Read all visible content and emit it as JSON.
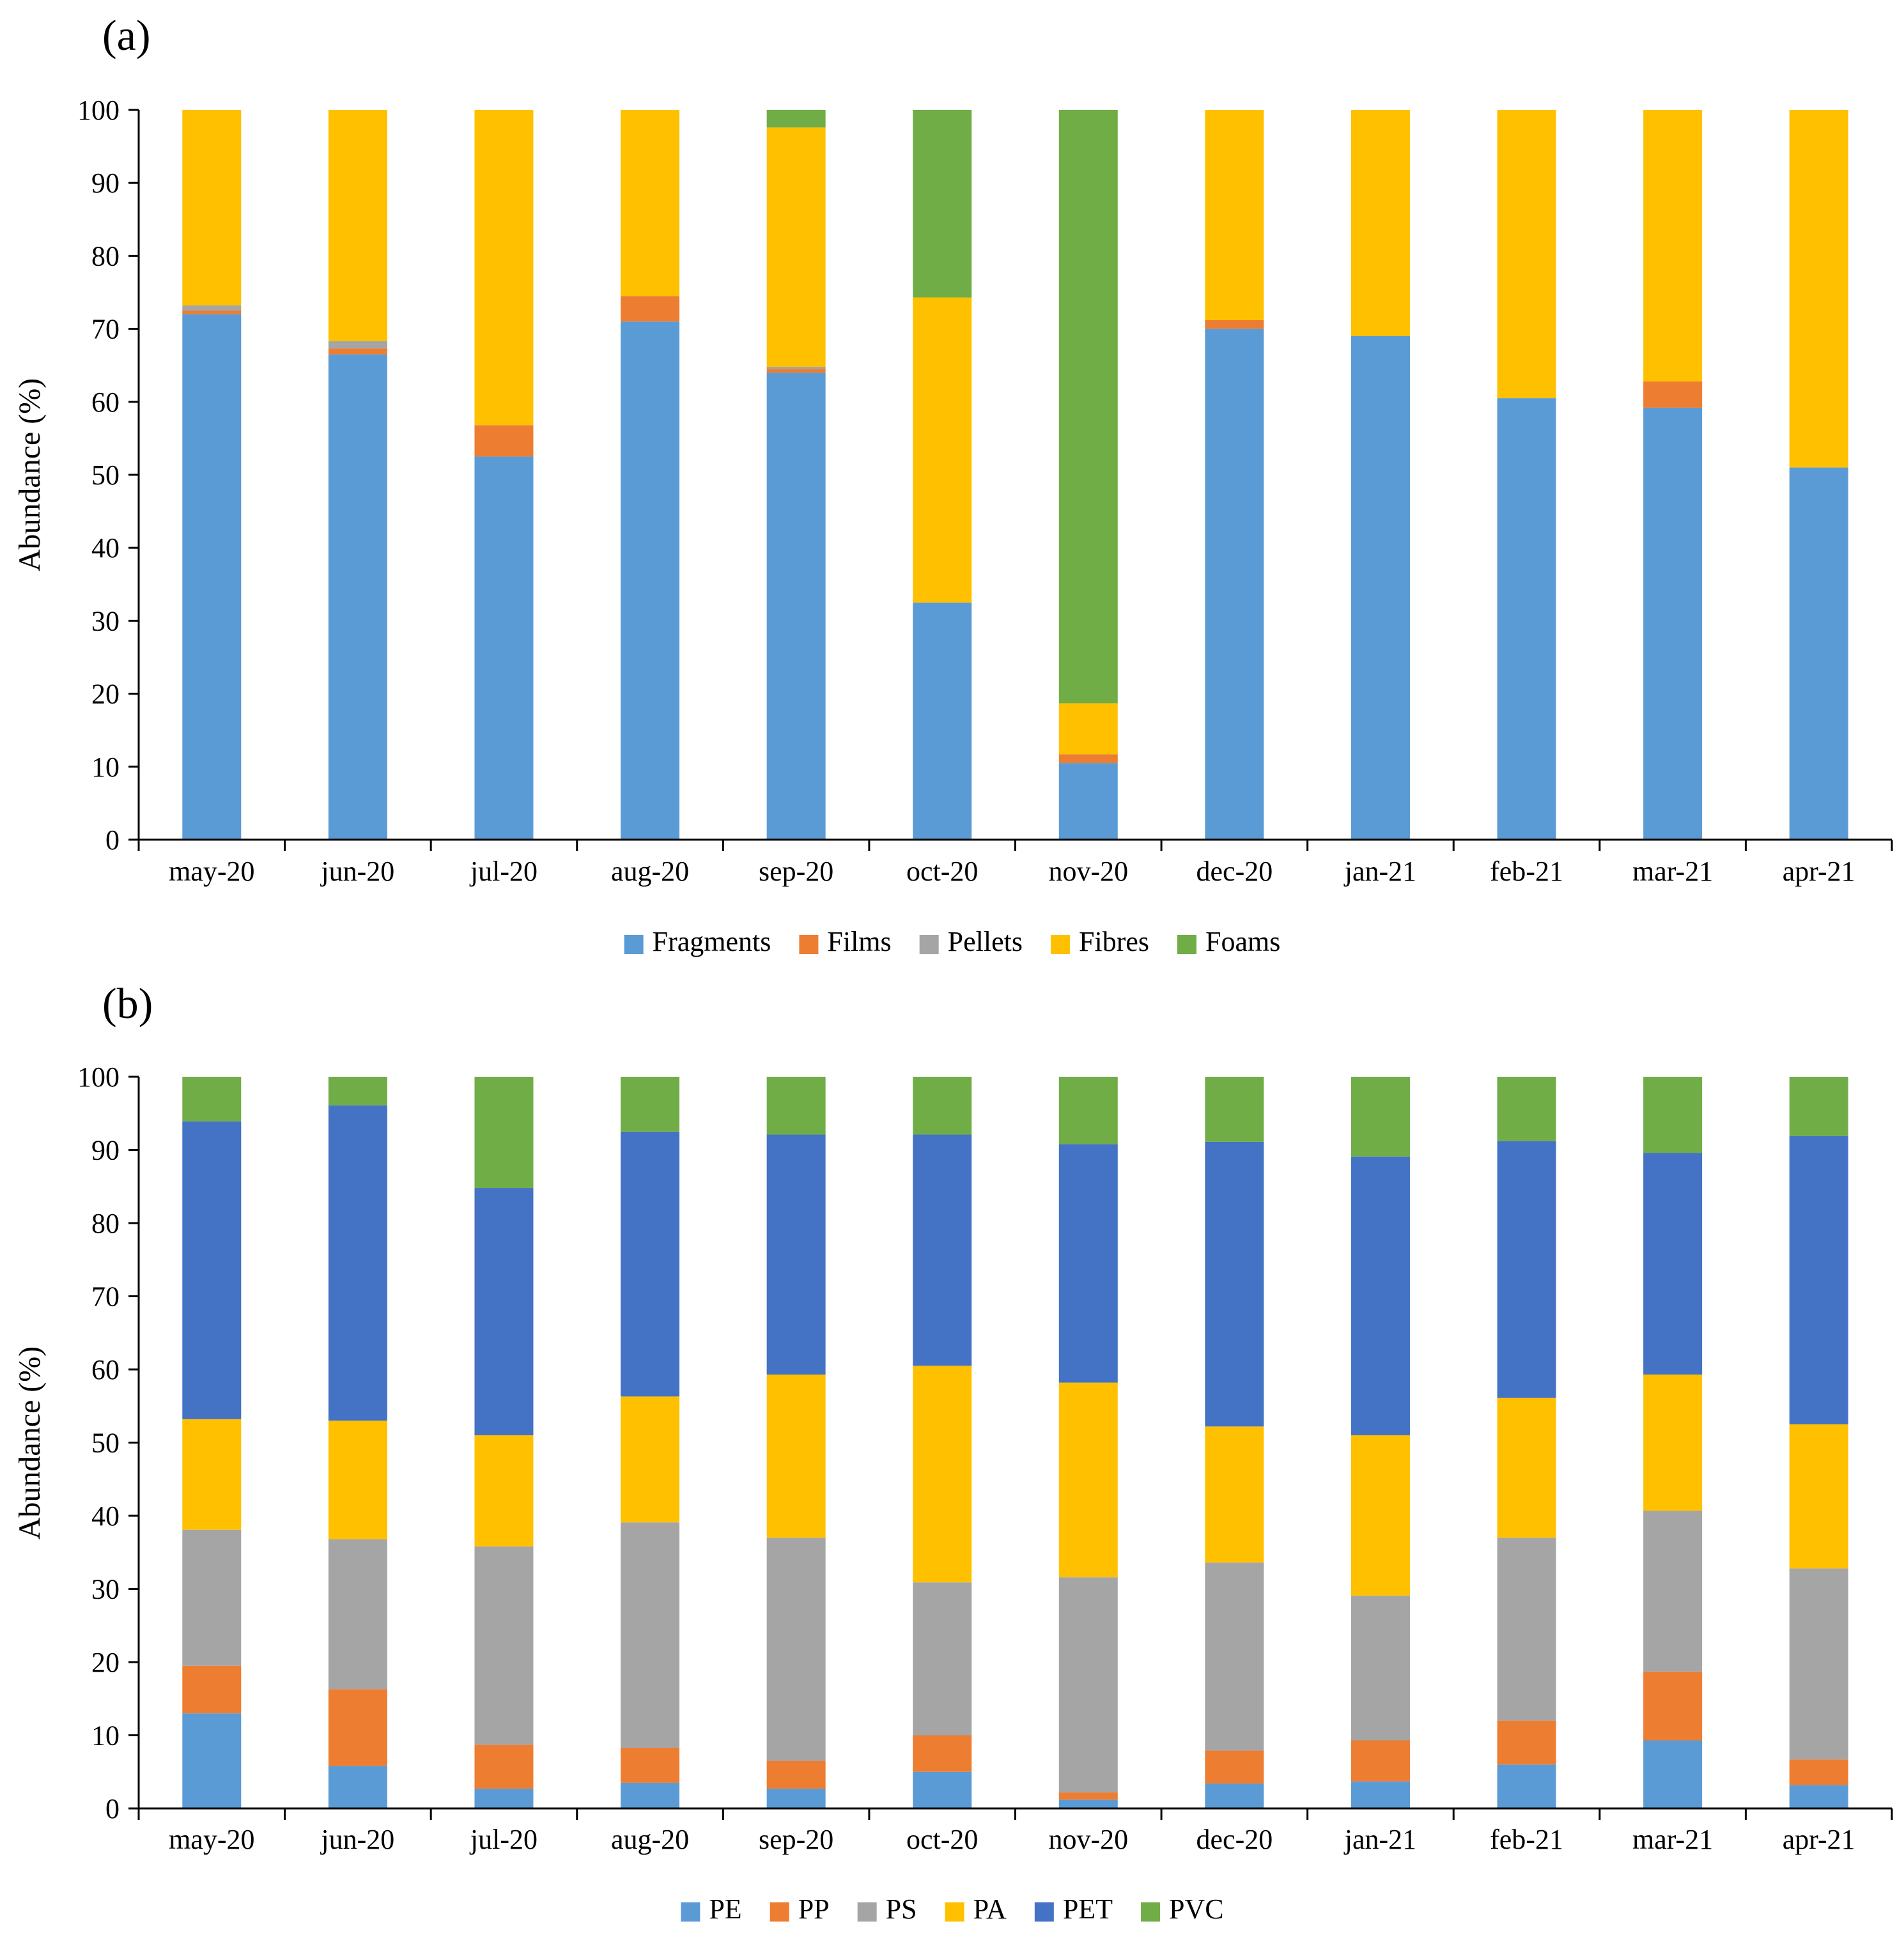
{
  "figure": {
    "colors": {
      "blue_light": "#5b9bd5",
      "orange": "#ed7d31",
      "gray": "#a5a5a5",
      "yellow": "#ffc000",
      "blue_dark": "#4472c4",
      "green": "#70ad47",
      "axis": "#000000"
    }
  },
  "chart_data": [
    {
      "panel_label": "(a)",
      "type": "bar",
      "stacked": true,
      "categories": [
        "may-20",
        "jun-20",
        "jul-20",
        "aug-20",
        "sep-20",
        "oct-20",
        "nov-20",
        "dec-20",
        "jan-21",
        "feb-21",
        "mar-21",
        "apr-21"
      ],
      "ylabel": "Abundance (%)",
      "xlabel": "",
      "ylim": [
        0,
        100
      ],
      "yticks": [
        0,
        10,
        20,
        30,
        40,
        50,
        60,
        70,
        80,
        90,
        100
      ],
      "grid": false,
      "legend_position": "bottom",
      "series": [
        {
          "name": "Fragments",
          "color": "#5b9bd5",
          "values": [
            72.0,
            66.5,
            52.5,
            71.0,
            64.0,
            32.5,
            10.5,
            70.0,
            69.0,
            60.5,
            59.2,
            51.0
          ]
        },
        {
          "name": "Films",
          "color": "#ed7d31",
          "values": [
            0.5,
            0.8,
            4.3,
            3.5,
            0.5,
            0,
            1.2,
            1.2,
            0,
            0,
            3.6,
            0
          ]
        },
        {
          "name": "Pellets",
          "color": "#a5a5a5",
          "values": [
            0.7,
            1.0,
            0,
            0,
            0.3,
            0,
            0,
            0,
            0,
            0,
            0,
            0
          ]
        },
        {
          "name": "Fibres",
          "color": "#ffc000",
          "values": [
            26.8,
            31.7,
            43.2,
            25.5,
            32.8,
            41.8,
            7.0,
            28.8,
            31.0,
            39.5,
            37.2,
            49.0
          ]
        },
        {
          "name": "Foams",
          "color": "#70ad47",
          "values": [
            0,
            0,
            0,
            0,
            2.4,
            25.7,
            81.3,
            0,
            0,
            0,
            0,
            0
          ]
        }
      ]
    },
    {
      "panel_label": "(b)",
      "type": "bar",
      "stacked": true,
      "categories": [
        "may-20",
        "jun-20",
        "jul-20",
        "aug-20",
        "sep-20",
        "oct-20",
        "nov-20",
        "dec-20",
        "jan-21",
        "feb-21",
        "mar-21",
        "apr-21"
      ],
      "ylabel": "Abundance (%)",
      "xlabel": "",
      "ylim": [
        0,
        100
      ],
      "yticks": [
        0,
        10,
        20,
        30,
        40,
        50,
        60,
        70,
        80,
        90,
        100
      ],
      "grid": false,
      "legend_position": "bottom",
      "series": [
        {
          "name": "PE",
          "color": "#5b9bd5",
          "values": [
            13.0,
            5.8,
            2.7,
            3.5,
            2.7,
            5.0,
            1.2,
            3.4,
            3.7,
            6.0,
            9.3,
            3.2
          ]
        },
        {
          "name": "PP",
          "color": "#ed7d31",
          "values": [
            6.5,
            10.5,
            6.0,
            4.8,
            3.8,
            5.0,
            1.0,
            4.5,
            5.6,
            6.0,
            9.4,
            3.5
          ]
        },
        {
          "name": "PS",
          "color": "#a5a5a5",
          "values": [
            18.6,
            20.5,
            27.1,
            30.8,
            30.5,
            20.9,
            29.4,
            25.7,
            19.8,
            25.0,
            22.0,
            26.1
          ]
        },
        {
          "name": "PA",
          "color": "#ffc000",
          "values": [
            15.1,
            16.2,
            15.2,
            17.2,
            22.3,
            29.6,
            26.6,
            18.6,
            21.9,
            19.1,
            18.6,
            19.7
          ]
        },
        {
          "name": "PET",
          "color": "#4472c4",
          "values": [
            40.7,
            43.1,
            33.8,
            36.2,
            32.8,
            31.6,
            32.6,
            38.9,
            38.1,
            35.1,
            30.3,
            39.4
          ]
        },
        {
          "name": "PVC",
          "color": "#70ad47",
          "values": [
            6.1,
            3.9,
            15.2,
            7.5,
            7.9,
            7.9,
            9.2,
            8.9,
            10.9,
            8.8,
            10.4,
            8.1
          ]
        }
      ]
    }
  ]
}
